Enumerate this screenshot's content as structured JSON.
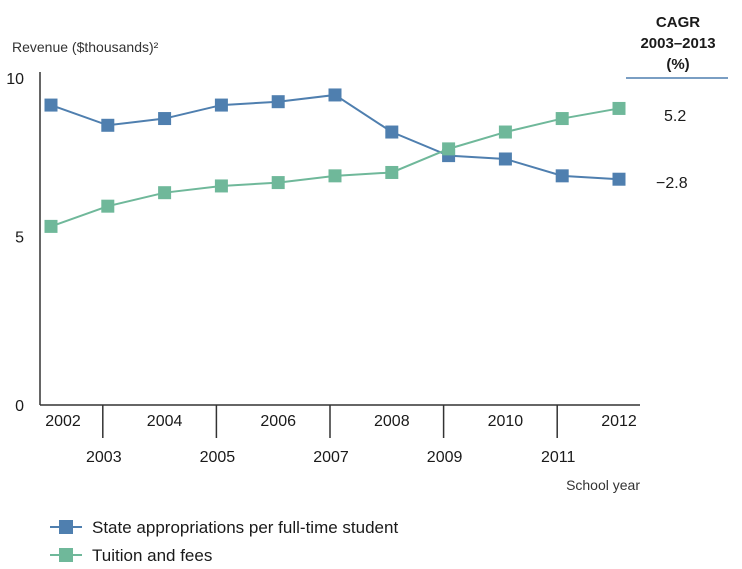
{
  "chart_data": {
    "type": "line",
    "ylabel": "Revenue ($thousands)²",
    "xlabel": "School year",
    "ylim": [
      0,
      10
    ],
    "yticks": [
      0,
      5,
      10
    ],
    "x": [
      2002,
      2003,
      2004,
      2005,
      2006,
      2007,
      2008,
      2009,
      2010,
      2011,
      2012
    ],
    "x_tick_labels_top": [
      "2002",
      "2004",
      "2006",
      "2008",
      "2010",
      "2012"
    ],
    "x_tick_labels_bottom": [
      "2003",
      "2005",
      "2007",
      "2009",
      "2011"
    ],
    "grid": false,
    "legend_position": "bottom-left",
    "series": [
      {
        "name": "State appropriations per full-time student",
        "color": "#4f7faf",
        "values": [
          8.9,
          8.3,
          8.5,
          8.9,
          9.0,
          9.2,
          8.1,
          7.4,
          7.3,
          6.8,
          6.7
        ],
        "cagr": "−2.8"
      },
      {
        "name": "Tuition and fees",
        "color": "#6fb89a",
        "values": [
          5.3,
          5.9,
          6.3,
          6.5,
          6.6,
          6.8,
          6.9,
          7.6,
          8.1,
          8.5,
          8.8
        ],
        "cagr": "5.2"
      }
    ],
    "cagr_header": [
      "CAGR",
      "2003–2013",
      "(%)"
    ]
  }
}
